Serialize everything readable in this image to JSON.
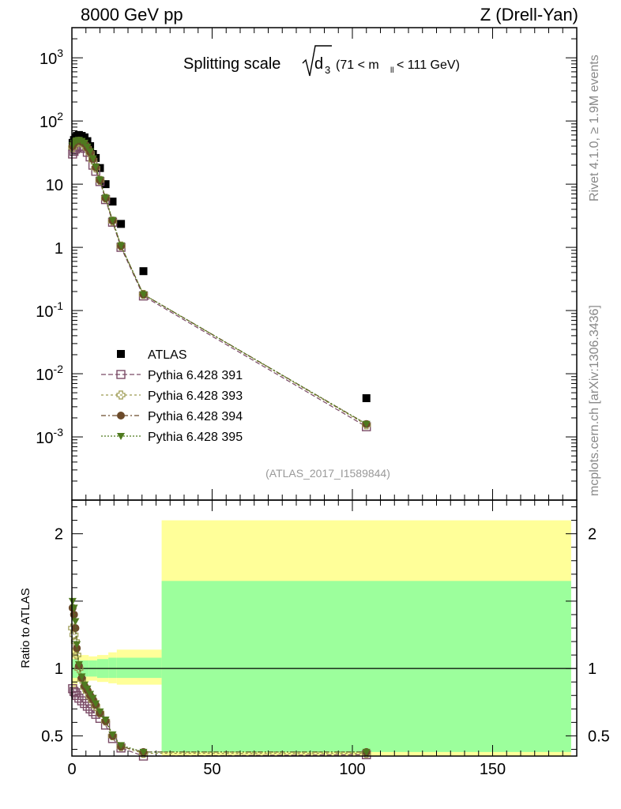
{
  "header": {
    "left": "8000 GeV pp",
    "right": "Z (Drell-Yan)"
  },
  "side": {
    "rivet": "Rivet 4.1.0, ≥ 1.9M events",
    "mcplots": "mcplots.cern.ch [arXiv:1306.3436]"
  },
  "plot": {
    "title_main": "Splitting scale",
    "title_sqrt_var": "d",
    "title_sqrt_sub": "3",
    "title_cut_left": "(71 < m",
    "title_cut_sub": "ll",
    "title_cut_right": " < 111 GeV)",
    "analysis_id": "(ATLAS_2017_I1589844)",
    "ratio_ylabel": "Ratio to ATLAS"
  },
  "colors": {
    "atlas": "#000000",
    "p391": "#7a4b66",
    "p393": "#9c9a50",
    "p394": "#6b4a2a",
    "p395": "#4f7a1f",
    "band_inner": "#9cff9c",
    "band_outer": "#ffff99"
  },
  "chart_data": {
    "type": "scatter",
    "x_range": [
      0,
      180
    ],
    "main": {
      "yscale": "log",
      "y_range": [
        0.0001,
        3000
      ],
      "y_ticks": [
        "10^3",
        "10^2",
        "10",
        "1",
        "10^-1",
        "10^-2",
        "10^-3"
      ]
    },
    "ratio": {
      "y_range": [
        0.35,
        2.25
      ],
      "y_ticks": [
        0.5,
        1,
        2
      ]
    },
    "x_ticks": [
      0,
      50,
      100,
      150
    ],
    "legend_position": "left, lower-middle",
    "series": [
      {
        "name": "ATLAS",
        "marker": "filled-square",
        "x": [
          0.25,
          0.75,
          1.25,
          1.75,
          2.5,
          3.5,
          4.5,
          5.5,
          6.5,
          7.5,
          8.5,
          10,
          12,
          14.5,
          17.5,
          25.5,
          105
        ],
        "y": [
          45,
          50,
          55,
          58,
          60,
          58,
          55,
          48,
          40,
          30,
          26,
          18,
          10,
          5.3,
          2.35,
          0.42,
          0.0041
        ]
      },
      {
        "name": "Pythia 6.428 391",
        "marker": "open-square",
        "x": [
          0.25,
          0.75,
          1.25,
          1.75,
          2.5,
          3.5,
          4.5,
          5.5,
          6.5,
          7.5,
          8.5,
          10,
          12,
          14.5,
          17.5,
          25.5,
          105
        ],
        "y": [
          30,
          33,
          36,
          38,
          40,
          39,
          37,
          32,
          27,
          20,
          16,
          11,
          5.7,
          2.5,
          1.0,
          0.17,
          0.00145
        ],
        "ratio": [
          0.85,
          0.83,
          0.82,
          0.8,
          0.78,
          0.76,
          0.74,
          0.72,
          0.7,
          0.68,
          0.66,
          0.63,
          0.58,
          0.48,
          0.41,
          0.35,
          0.36
        ]
      },
      {
        "name": "Pythia 6.428 393",
        "marker": "open-cross",
        "x": [
          0.25,
          0.75,
          1.25,
          1.75,
          2.5,
          3.5,
          4.5,
          5.5,
          6.5,
          7.5,
          8.5,
          10,
          12,
          14.5,
          17.5,
          25.5,
          105
        ],
        "y": [
          38,
          42,
          45,
          46,
          47,
          45,
          42,
          37,
          31,
          24,
          18,
          11.5,
          6,
          2.6,
          1.05,
          0.18,
          0.00155
        ],
        "ratio": [
          1.3,
          1.25,
          1.2,
          1.1,
          1.0,
          0.92,
          0.86,
          0.83,
          0.79,
          0.76,
          0.72,
          0.67,
          0.61,
          0.5,
          0.42,
          0.37,
          0.37
        ]
      },
      {
        "name": "Pythia 6.428 394",
        "marker": "filled-circle",
        "x": [
          0.25,
          0.75,
          1.25,
          1.75,
          2.5,
          3.5,
          4.5,
          5.5,
          6.5,
          7.5,
          8.5,
          10,
          12,
          14.5,
          17.5,
          25.5,
          105
        ],
        "y": [
          40,
          44,
          47,
          48,
          49,
          47,
          44,
          38,
          32,
          25,
          18.5,
          11.5,
          6,
          2.65,
          1.05,
          0.18,
          0.0016
        ],
        "ratio": [
          1.45,
          1.4,
          1.3,
          1.15,
          1.02,
          0.93,
          0.87,
          0.84,
          0.8,
          0.77,
          0.73,
          0.67,
          0.61,
          0.5,
          0.42,
          0.38,
          0.38
        ]
      },
      {
        "name": "Pythia 6.428 395",
        "marker": "filled-triangle-down",
        "x": [
          0.25,
          0.75,
          1.25,
          1.75,
          2.5,
          3.5,
          4.5,
          5.5,
          6.5,
          7.5,
          8.5,
          10,
          12,
          14.5,
          17.5,
          25.5,
          105
        ],
        "y": [
          41,
          45,
          48,
          49,
          50,
          48,
          45,
          39,
          33,
          25.5,
          19,
          11.8,
          6.1,
          2.7,
          1.07,
          0.18,
          0.0016
        ],
        "ratio": [
          1.5,
          1.45,
          1.35,
          1.18,
          1.03,
          0.94,
          0.88,
          0.85,
          0.81,
          0.78,
          0.74,
          0.68,
          0.62,
          0.51,
          0.43,
          0.38,
          0.38
        ]
      }
    ],
    "uncertainty_bands": {
      "x_edges": [
        0,
        2,
        6,
        9,
        13,
        16,
        20,
        32,
        178
      ],
      "inner_low": [
        0.93,
        0.94,
        0.94,
        0.93,
        0.93,
        0.93,
        0.93,
        0.38
      ],
      "inner_high": [
        1.07,
        1.06,
        1.06,
        1.07,
        1.08,
        1.08,
        1.08,
        1.65
      ],
      "outer_low": [
        0.85,
        0.9,
        0.91,
        0.9,
        0.89,
        0.88,
        0.88,
        0.2
      ],
      "outer_high": [
        1.15,
        1.1,
        1.09,
        1.1,
        1.12,
        1.14,
        1.14,
        2.1
      ]
    }
  }
}
